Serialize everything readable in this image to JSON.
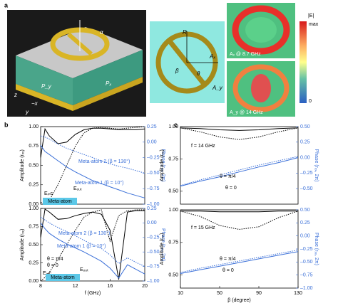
{
  "panel_labels": [
    "a",
    "b",
    "c"
  ],
  "panel_a": {
    "alpha": "α",
    "px": "Pₓ",
    "py": "P_y",
    "axis_z": "z",
    "axis_x": "−x",
    "axis_y": "y",
    "r": "R",
    "ax": "Aₓ",
    "ay": "A_y",
    "beta": "β",
    "theta": "θ",
    "map1": "Aₓ @ 8.7 GHz",
    "map2": "A_y @ 14 GHz",
    "cbar_title": "|E|",
    "cbar_max": "max",
    "cbar_min": "0"
  },
  "chart_data": [
    {
      "type": "line",
      "y_label": "Amplitude (rₓₓ)",
      "y2_label": "Phase (rₓₓ, 2π)",
      "x": [
        8,
        8.5,
        9,
        10,
        11,
        12,
        13,
        14,
        15,
        16,
        17,
        18,
        19,
        20
      ],
      "xlim": [
        8,
        20
      ],
      "ylim": [
        0,
        1
      ],
      "yticks": [
        {
          "value": 0,
          "label": "0.00"
        },
        {
          "value": 0.25,
          "label": "0.25"
        },
        {
          "value": 0.5,
          "label": "0.50"
        },
        {
          "value": 0.75,
          "label": "0.75"
        },
        {
          "value": 1,
          "label": "1.00"
        }
      ],
      "y2lim": [
        -1,
        0.25
      ],
      "y2ticks": [
        {
          "value": 0.25,
          "label": "0.25"
        },
        {
          "value": 0,
          "label": "0.00"
        },
        {
          "value": -0.25,
          "label": "–0.25"
        },
        {
          "value": -0.5,
          "label": "–0.50"
        },
        {
          "value": -0.75,
          "label": "–0.75"
        },
        {
          "value": -1,
          "label": "–1.00"
        }
      ],
      "series": [
        {
          "color": "#000000",
          "style": "solid",
          "values": [
            0.6,
            0.97,
            0.88,
            0.78,
            0.8,
            0.9,
            0.96,
            0.98,
            0.98,
            0.97,
            0.96,
            0.96,
            0.96,
            0.97
          ]
        },
        {
          "color": "#000000",
          "style": "dotted",
          "values": [
            0.02,
            0.03,
            0.05,
            0.25,
            0.5,
            0.75,
            0.92,
            0.98,
            0.99,
            0.98,
            0.97,
            0.98,
            0.99,
            1.0
          ]
        },
        {
          "color": "#3a6fd8",
          "style": "solid",
          "axis": "y2",
          "values": [
            -0.05,
            -0.15,
            -0.2,
            -0.3,
            -0.4,
            -0.48,
            -0.55,
            -0.62,
            -0.67,
            -0.72,
            -0.77,
            -0.82,
            -0.86,
            -0.9
          ]
        },
        {
          "color": "#3a6fd8",
          "style": "dotted",
          "axis": "y2",
          "values": [
            0.1,
            0.08,
            0.05,
            -0.03,
            -0.1,
            -0.15,
            -0.2,
            -0.25,
            -0.3,
            -0.35,
            -0.39,
            -0.42,
            -0.46,
            -0.5
          ]
        }
      ],
      "annotations": [
        {
          "text": "Meta-atom 2 (β = 130°)",
          "color": "#3a6fd8"
        },
        {
          "text": "Meta-atom 1 (β = 10°)",
          "color": "#3a6fd8"
        },
        {
          "text": "Eᵢₙc",
          "color": "#000000"
        },
        {
          "text": "Eₒᵤₜ",
          "color": "#000000"
        },
        {
          "text": "Meta-atom",
          "color": "#000000",
          "boxed": true
        }
      ]
    },
    {
      "type": "line",
      "y_label": "Amplitude (rₓₓ)",
      "y2_label": "Phase (rₓₓ, 2π)",
      "x_label": "f (GHz)",
      "x": [
        8,
        8.5,
        9,
        10,
        11,
        12,
        13,
        14,
        15,
        16,
        17,
        18,
        19,
        20
      ],
      "xlim": [
        8,
        20
      ],
      "xticks": [
        8,
        12,
        16,
        20
      ],
      "ylim": [
        0,
        1
      ],
      "yticks": [
        {
          "value": 0,
          "label": "0.00"
        },
        {
          "value": 0.25,
          "label": "0.25"
        },
        {
          "value": 0.5,
          "label": "0.50"
        },
        {
          "value": 0.75,
          "label": "0.75"
        },
        {
          "value": 1,
          "label": "1.00"
        }
      ],
      "y2lim": [
        -1,
        0.25
      ],
      "y2ticks": [
        {
          "value": 0.25,
          "label": "0.25"
        },
        {
          "value": 0,
          "label": "0.00"
        },
        {
          "value": -0.25,
          "label": "–0.25"
        },
        {
          "value": -0.5,
          "label": "–0.50"
        },
        {
          "value": -0.75,
          "label": "–0.75"
        },
        {
          "value": -1,
          "label": "–1.00"
        }
      ],
      "series": [
        {
          "color": "#000000",
          "style": "solid",
          "values": [
            0.6,
            0.99,
            0.95,
            0.85,
            0.86,
            0.9,
            0.93,
            0.95,
            0.92,
            0.7,
            0.02,
            0.95,
            0.97,
            0.97
          ]
        },
        {
          "color": "#000000",
          "style": "dotted",
          "values": [
            0.0,
            0.05,
            0.12,
            0.3,
            0.5,
            0.7,
            0.88,
            0.95,
            0.98,
            0.55,
            0.9,
            0.97,
            0.98,
            0.98
          ]
        },
        {
          "color": "#3a6fd8",
          "style": "solid",
          "axis": "y2",
          "values": [
            0.0,
            -0.1,
            -0.18,
            -0.28,
            -0.36,
            -0.43,
            -0.5,
            -0.58,
            -0.66,
            -0.78,
            -0.95,
            -0.72,
            -0.8,
            -0.88
          ]
        },
        {
          "color": "#3a6fd8",
          "style": "dotted",
          "axis": "y2",
          "values": [
            0.1,
            0.05,
            0.0,
            -0.08,
            -0.15,
            -0.22,
            -0.3,
            -0.37,
            -0.44,
            -0.55,
            -0.7,
            -0.6,
            -0.68,
            -0.75
          ]
        }
      ],
      "annotations": [
        {
          "text": "Meta-atom 2 (β = 130°)",
          "color": "#3a6fd8"
        },
        {
          "text": "Meta-atom 1 (β = 10°)",
          "color": "#3a6fd8"
        },
        {
          "text": "θ = π/4",
          "color": "#000000"
        },
        {
          "text": "θ = 0",
          "color": "#000000"
        },
        {
          "text": "Eᵢₙc",
          "color": "#000000"
        },
        {
          "text": "Eₒᵤₜ",
          "color": "#000000"
        },
        {
          "text": "Meta-atom",
          "color": "#000000",
          "boxed": true
        }
      ]
    },
    {
      "type": "line",
      "y_label": "Amplitude (rₓₓ)",
      "y2_label": "Phase (rₓₓ, 2π)",
      "x": [
        10,
        30,
        50,
        70,
        90,
        110,
        130
      ],
      "xlim": [
        10,
        130
      ],
      "ylim": [
        0.4,
        1
      ],
      "yticks": [
        {
          "value": 0.5,
          "label": "0.50"
        },
        {
          "value": 0.75,
          "label": "0.75"
        },
        {
          "value": 1,
          "label": "1.00"
        }
      ],
      "y2lim": [
        -0.75,
        0.5
      ],
      "y2ticks": [
        {
          "value": 0.5,
          "label": "0.50"
        },
        {
          "value": 0.25,
          "label": "0.25"
        },
        {
          "value": 0,
          "label": "0.00"
        },
        {
          "value": -0.25,
          "label": "–0.25"
        },
        {
          "value": -0.5,
          "label": "–0.50"
        }
      ],
      "series": [
        {
          "color": "#000000",
          "style": "solid",
          "values": [
            0.99,
            0.985,
            0.975,
            0.97,
            0.975,
            0.985,
            0.99
          ]
        },
        {
          "color": "#000000",
          "style": "dotted",
          "values": [
            0.99,
            0.96,
            0.92,
            0.9,
            0.92,
            0.96,
            0.99
          ]
        },
        {
          "color": "#3a6fd8",
          "style": "solid",
          "axis": "y2",
          "values": [
            -0.46,
            -0.38,
            -0.31,
            -0.23,
            -0.15,
            -0.08,
            0.0
          ]
        },
        {
          "color": "#3a6fd8",
          "style": "dotted",
          "axis": "y2",
          "values": [
            -0.45,
            -0.36,
            -0.28,
            -0.2,
            -0.12,
            -0.05,
            0.02
          ]
        }
      ],
      "annotations": [
        {
          "text": "f = 14 GHz",
          "color": "#000000"
        },
        {
          "text": "θ = π/4",
          "color": "#000000"
        },
        {
          "text": "θ = 0",
          "color": "#000000"
        }
      ]
    },
    {
      "type": "line",
      "y_label": "Amplitude (rₓₓ)",
      "y2_label": "Phase (rₓₓ, 2π)",
      "x_label": "β (degree)",
      "x": [
        10,
        30,
        50,
        70,
        90,
        110,
        130
      ],
      "xlim": [
        10,
        130
      ],
      "xticks": [
        10,
        50,
        90,
        130
      ],
      "ylim": [
        0.4,
        1
      ],
      "yticks": [
        {
          "value": 0.5,
          "label": "0.50"
        },
        {
          "value": 0.75,
          "label": "0.75"
        },
        {
          "value": 1,
          "label": "1.00"
        }
      ],
      "y2lim": [
        -1,
        0.5
      ],
      "y2ticks": [
        {
          "value": 0.5,
          "label": "0.50"
        },
        {
          "value": 0.25,
          "label": "0.25"
        },
        {
          "value": 0,
          "label": "0.00"
        },
        {
          "value": -0.25,
          "label": "–0.25"
        },
        {
          "value": -0.5,
          "label": "–0.50"
        },
        {
          "value": -0.75,
          "label": "–0.75"
        },
        {
          "value": -1,
          "label": "–1.00"
        }
      ],
      "series": [
        {
          "color": "#000000",
          "style": "solid",
          "values": [
            0.99,
            0.99,
            0.985,
            0.985,
            0.985,
            0.99,
            0.99
          ]
        },
        {
          "color": "#000000",
          "style": "dotted",
          "values": [
            0.99,
            0.95,
            0.88,
            0.85,
            0.87,
            0.94,
            0.99
          ]
        },
        {
          "color": "#3a6fd8",
          "style": "solid",
          "axis": "y2",
          "values": [
            -0.72,
            -0.65,
            -0.58,
            -0.51,
            -0.44,
            -0.37,
            -0.3
          ]
        },
        {
          "color": "#3a6fd8",
          "style": "dotted",
          "axis": "y2",
          "values": [
            -0.7,
            -0.62,
            -0.55,
            -0.48,
            -0.41,
            -0.34,
            -0.27
          ]
        }
      ],
      "annotations": [
        {
          "text": "f = 15 GHz",
          "color": "#000000"
        },
        {
          "text": "θ = π/4",
          "color": "#000000"
        },
        {
          "text": "θ = 0",
          "color": "#000000"
        }
      ]
    }
  ]
}
